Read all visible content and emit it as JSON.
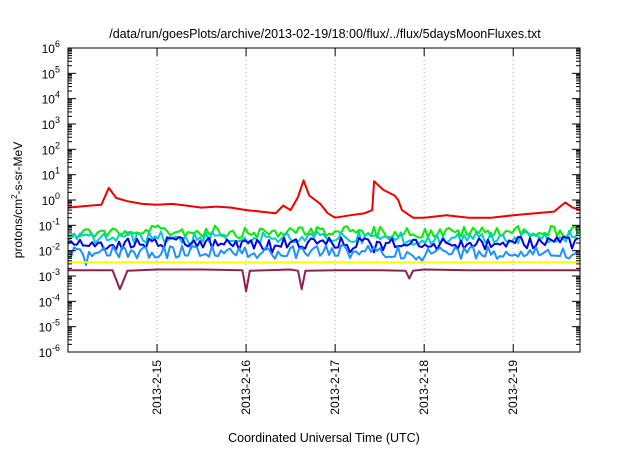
{
  "chart_data": {
    "type": "line",
    "title": "/data/run/goesPlots/archive/2013-02-19/18:00/flux/../flux/5daysMoonFluxes.txt",
    "xlabel": "Coordinated Universal Time (UTC)",
    "ylabel": {
      "base": "protons/cm",
      "sup": "2",
      "rest": "-s-sr-MeV"
    },
    "yscale": "log",
    "ylim": [
      1e-06,
      1000000.0
    ],
    "y_ticks": [
      {
        "value": 1e-06,
        "base": "10",
        "exp": "-6"
      },
      {
        "value": 1e-05,
        "base": "10",
        "exp": "-5"
      },
      {
        "value": 0.0001,
        "base": "10",
        "exp": "-4"
      },
      {
        "value": 0.001,
        "base": "10",
        "exp": "-3"
      },
      {
        "value": 0.01,
        "base": "10",
        "exp": "-2"
      },
      {
        "value": 0.1,
        "base": "10",
        "exp": "-1"
      },
      {
        "value": 1,
        "base": "10",
        "exp": "0"
      },
      {
        "value": 10,
        "base": "10",
        "exp": "1"
      },
      {
        "value": 100,
        "base": "10",
        "exp": "2"
      },
      {
        "value": 1000,
        "base": "10",
        "exp": "3"
      },
      {
        "value": 10000,
        "base": "10",
        "exp": "4"
      },
      {
        "value": 100000,
        "base": "10",
        "exp": "5"
      },
      {
        "value": 1000000,
        "base": "10",
        "exp": "6"
      }
    ],
    "xlim": [
      "2013-02-14 00:00",
      "2013-02-19 18:00"
    ],
    "x_ticks": [
      {
        "value": "2013-02-15 00:00",
        "label": "2013-2-15"
      },
      {
        "value": "2013-02-16 00:00",
        "label": "2013-2-16"
      },
      {
        "value": "2013-02-17 00:00",
        "label": "2013-2-17"
      },
      {
        "value": "2013-02-18 00:00",
        "label": "2013-2-18"
      },
      {
        "value": "2013-02-19 00:00",
        "label": "2013-2-19"
      }
    ],
    "grid": true,
    "legend": "none",
    "series": [
      {
        "color": "#ee0000",
        "noisy": false,
        "points": [
          [
            "2013-02-14 00:00",
            0.5
          ],
          [
            "2013-02-14 03:00",
            0.55
          ],
          [
            "2013-02-14 06:00",
            0.6
          ],
          [
            "2013-02-14 09:00",
            0.65
          ],
          [
            "2013-02-14 11:00",
            3.0
          ],
          [
            "2013-02-14 13:00",
            1.2
          ],
          [
            "2013-02-14 16:00",
            0.9
          ],
          [
            "2013-02-14 20:00",
            0.7
          ],
          [
            "2013-02-15 00:00",
            0.65
          ],
          [
            "2013-02-15 04:00",
            0.7
          ],
          [
            "2013-02-15 08:00",
            0.6
          ],
          [
            "2013-02-15 12:00",
            0.5
          ],
          [
            "2013-02-15 16:00",
            0.55
          ],
          [
            "2013-02-15 20:00",
            0.5
          ],
          [
            "2013-02-16 00:00",
            0.4
          ],
          [
            "2013-02-16 04:00",
            0.35
          ],
          [
            "2013-02-16 08:00",
            0.3
          ],
          [
            "2013-02-16 10:00",
            0.6
          ],
          [
            "2013-02-16 12:00",
            0.4
          ],
          [
            "2013-02-16 14:00",
            1.3
          ],
          [
            "2013-02-16 15:30",
            6.0
          ],
          [
            "2013-02-16 17:00",
            1.5
          ],
          [
            "2013-02-16 20:00",
            0.7
          ],
          [
            "2013-02-16 22:00",
            0.3
          ],
          [
            "2013-02-17 00:00",
            0.2
          ],
          [
            "2013-02-17 04:00",
            0.25
          ],
          [
            "2013-02-17 08:00",
            0.3
          ],
          [
            "2013-02-17 10:00",
            0.4
          ],
          [
            "2013-02-17 10:30",
            5.5
          ],
          [
            "2013-02-17 13:00",
            2.5
          ],
          [
            "2013-02-17 16:00",
            1.5
          ],
          [
            "2013-02-17 17:00",
            1.0
          ],
          [
            "2013-02-17 18:00",
            0.4
          ],
          [
            "2013-02-17 21:00",
            0.2
          ],
          [
            "2013-02-18 00:00",
            0.2
          ],
          [
            "2013-02-18 06:00",
            0.25
          ],
          [
            "2013-02-18 12:00",
            0.2
          ],
          [
            "2013-02-18 18:00",
            0.2
          ],
          [
            "2013-02-19 00:00",
            0.25
          ],
          [
            "2013-02-19 06:00",
            0.3
          ],
          [
            "2013-02-19 11:00",
            0.35
          ],
          [
            "2013-02-19 14:00",
            0.8
          ],
          [
            "2013-02-19 16:00",
            0.5
          ],
          [
            "2013-02-19 18:00",
            0.4
          ]
        ]
      },
      {
        "color": "#00ee00",
        "noisy": true,
        "points": [
          [
            "2013-02-14 00:00",
            0.05
          ],
          [
            "2013-02-15 00:00",
            0.06
          ],
          [
            "2013-02-16 00:00",
            0.05
          ],
          [
            "2013-02-17 00:00",
            0.06
          ],
          [
            "2013-02-18 00:00",
            0.05
          ],
          [
            "2013-02-19 00:00",
            0.06
          ],
          [
            "2013-02-19 18:00",
            0.06
          ]
        ]
      },
      {
        "color": "#00cccc",
        "noisy": true,
        "points": [
          [
            "2013-02-14 00:00",
            0.03
          ],
          [
            "2013-02-15 00:00",
            0.035
          ],
          [
            "2013-02-16 00:00",
            0.03
          ],
          [
            "2013-02-17 00:00",
            0.035
          ],
          [
            "2013-02-18 00:00",
            0.03
          ],
          [
            "2013-02-19 00:00",
            0.035
          ],
          [
            "2013-02-19 18:00",
            0.035
          ]
        ]
      },
      {
        "color": "#0000ee",
        "noisy": true,
        "points": [
          [
            "2013-02-14 00:00",
            0.015
          ],
          [
            "2013-02-15 00:00",
            0.02
          ],
          [
            "2013-02-16 00:00",
            0.018
          ],
          [
            "2013-02-17 00:00",
            0.02
          ],
          [
            "2013-02-18 00:00",
            0.017
          ],
          [
            "2013-02-19 00:00",
            0.02
          ],
          [
            "2013-02-19 18:00",
            0.02
          ]
        ]
      },
      {
        "color": "#1e90ff",
        "noisy": true,
        "points": [
          [
            "2013-02-14 00:00",
            0.008
          ],
          [
            "2013-02-15 00:00",
            0.009
          ],
          [
            "2013-02-16 00:00",
            0.008
          ],
          [
            "2013-02-17 00:00",
            0.009
          ],
          [
            "2013-02-18 00:00",
            0.008
          ],
          [
            "2013-02-19 00:00",
            0.009
          ],
          [
            "2013-02-19 18:00",
            0.009
          ]
        ]
      },
      {
        "color": "#ffff00",
        "noisy": false,
        "points": [
          [
            "2013-02-14 00:00",
            0.0035
          ],
          [
            "2013-02-15 00:00",
            0.0035
          ],
          [
            "2013-02-16 00:00",
            0.0034
          ],
          [
            "2013-02-17 00:00",
            0.0035
          ],
          [
            "2013-02-18 00:00",
            0.0034
          ],
          [
            "2013-02-19 00:00",
            0.0035
          ],
          [
            "2013-02-19 18:00",
            0.0035
          ]
        ]
      },
      {
        "color": "#8b2252",
        "noisy": false,
        "points": [
          [
            "2013-02-14 00:00",
            0.0017
          ],
          [
            "2013-02-14 12:00",
            0.0017
          ],
          [
            "2013-02-14 14:00",
            0.0003
          ],
          [
            "2013-02-14 16:00",
            0.0016
          ],
          [
            "2013-02-15 00:00",
            0.0018
          ],
          [
            "2013-02-15 12:00",
            0.0018
          ],
          [
            "2013-02-15 23:00",
            0.0017
          ],
          [
            "2013-02-16 00:00",
            0.00025
          ],
          [
            "2013-02-16 01:00",
            0.0016
          ],
          [
            "2013-02-16 12:00",
            0.0018
          ],
          [
            "2013-02-16 14:00",
            0.0016
          ],
          [
            "2013-02-16 15:00",
            0.0003
          ],
          [
            "2013-02-16 16:00",
            0.0016
          ],
          [
            "2013-02-17 00:00",
            0.0017
          ],
          [
            "2013-02-17 12:00",
            0.0017
          ],
          [
            "2013-02-17 19:00",
            0.0016
          ],
          [
            "2013-02-17 20:00",
            0.0008
          ],
          [
            "2013-02-17 21:00",
            0.0016
          ],
          [
            "2013-02-18 00:00",
            0.0018
          ],
          [
            "2013-02-18 12:00",
            0.0017
          ],
          [
            "2013-02-19 00:00",
            0.0017
          ],
          [
            "2013-02-19 12:00",
            0.0017
          ],
          [
            "2013-02-19 18:00",
            0.0017
          ]
        ]
      }
    ]
  }
}
